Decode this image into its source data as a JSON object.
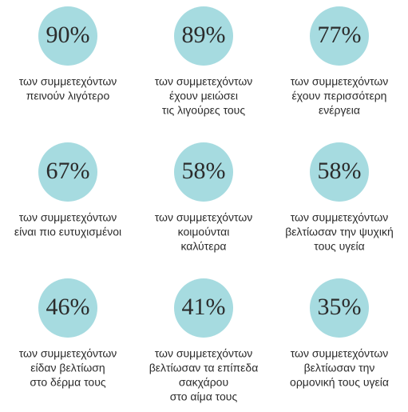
{
  "items": [
    {
      "value": "90%",
      "lines": [
        "των συμμετεχόντων",
        "πεινούν λιγότερο"
      ]
    },
    {
      "value": "89%",
      "lines": [
        "των συμμετεχόντων",
        "έχουν μειώσει",
        "τις λιγούρες τους"
      ]
    },
    {
      "value": "77%",
      "lines": [
        "των συμμετεχόντων",
        "έχουν περισσότερη",
        "ενέργεια"
      ]
    },
    {
      "value": "67%",
      "lines": [
        "των συμμετεχόντων",
        "είναι πιο ευτυχισμένοι"
      ]
    },
    {
      "value": "58%",
      "lines": [
        "των συμμετεχόντων",
        "κοιμούνται",
        "καλύτερα"
      ]
    },
    {
      "value": "58%",
      "lines": [
        "των συμμετεχόντων",
        "βελτίωσαν την ψυχική",
        "τους υγεία"
      ]
    },
    {
      "value": "46%",
      "lines": [
        "των συμμετεχόντων",
        "είδαν βελτίωση",
        "στο δέρμα τους"
      ]
    },
    {
      "value": "41%",
      "lines": [
        "των συμμετεχόντων",
        "βελτίωσαν τα επίπεδα",
        "σακχάρου",
        "στο αίμα τους"
      ]
    },
    {
      "value": "35%",
      "lines": [
        "των συμμετεχόντων",
        "βελτίωσαν την",
        "ορμονική τους υγεία"
      ]
    }
  ]
}
